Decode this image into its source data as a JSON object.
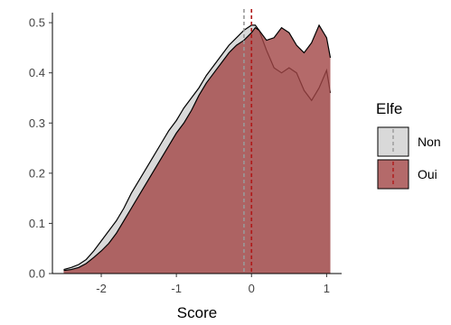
{
  "chart_data": {
    "type": "area",
    "title": "",
    "xlabel": "Score",
    "ylabel": "",
    "xlim": [
      -2.65,
      1.2
    ],
    "ylim": [
      0,
      0.52
    ],
    "x_ticks": [
      -2,
      -1,
      0,
      1
    ],
    "y_ticks": [
      0.0,
      0.1,
      0.2,
      0.3,
      0.4,
      0.5
    ],
    "x_tick_labels": [
      "-2",
      "-1",
      "0",
      "1"
    ],
    "y_tick_labels": [
      "0.0",
      "0.1",
      "0.2",
      "0.3",
      "0.4",
      "0.5"
    ],
    "grid": false,
    "legend": {
      "title": "Elfe",
      "position": "right"
    },
    "series": [
      {
        "name": "Non",
        "fill_color": "#d9d9d9",
        "line_color": "#000000",
        "mean_line_color": "#999999",
        "mean": -0.1,
        "points": [
          [
            -2.5,
            0.008
          ],
          [
            -2.4,
            0.012
          ],
          [
            -2.3,
            0.018
          ],
          [
            -2.2,
            0.028
          ],
          [
            -2.1,
            0.045
          ],
          [
            -2.0,
            0.065
          ],
          [
            -1.9,
            0.085
          ],
          [
            -1.8,
            0.105
          ],
          [
            -1.7,
            0.13
          ],
          [
            -1.6,
            0.16
          ],
          [
            -1.5,
            0.185
          ],
          [
            -1.4,
            0.21
          ],
          [
            -1.3,
            0.235
          ],
          [
            -1.2,
            0.26
          ],
          [
            -1.1,
            0.285
          ],
          [
            -1.0,
            0.305
          ],
          [
            -0.9,
            0.33
          ],
          [
            -0.8,
            0.35
          ],
          [
            -0.7,
            0.37
          ],
          [
            -0.6,
            0.395
          ],
          [
            -0.5,
            0.415
          ],
          [
            -0.4,
            0.435
          ],
          [
            -0.3,
            0.455
          ],
          [
            -0.2,
            0.47
          ],
          [
            -0.1,
            0.485
          ],
          [
            0.0,
            0.495
          ],
          [
            0.05,
            0.495
          ],
          [
            0.1,
            0.485
          ],
          [
            0.2,
            0.445
          ],
          [
            0.3,
            0.41
          ],
          [
            0.4,
            0.4
          ],
          [
            0.5,
            0.41
          ],
          [
            0.6,
            0.4
          ],
          [
            0.7,
            0.365
          ],
          [
            0.8,
            0.345
          ],
          [
            0.9,
            0.37
          ],
          [
            1.0,
            0.405
          ],
          [
            1.05,
            0.36
          ]
        ]
      },
      {
        "name": "Oui",
        "fill_color": "#a14545",
        "line_color": "#000000",
        "mean_line_color": "#b01818",
        "mean": 0.0,
        "points": [
          [
            -2.5,
            0.006
          ],
          [
            -2.4,
            0.008
          ],
          [
            -2.3,
            0.012
          ],
          [
            -2.2,
            0.02
          ],
          [
            -2.1,
            0.032
          ],
          [
            -2.0,
            0.045
          ],
          [
            -1.9,
            0.06
          ],
          [
            -1.8,
            0.08
          ],
          [
            -1.7,
            0.105
          ],
          [
            -1.6,
            0.13
          ],
          [
            -1.5,
            0.155
          ],
          [
            -1.4,
            0.18
          ],
          [
            -1.3,
            0.205
          ],
          [
            -1.2,
            0.23
          ],
          [
            -1.1,
            0.255
          ],
          [
            -1.0,
            0.28
          ],
          [
            -0.9,
            0.3
          ],
          [
            -0.8,
            0.325
          ],
          [
            -0.7,
            0.355
          ],
          [
            -0.6,
            0.38
          ],
          [
            -0.5,
            0.4
          ],
          [
            -0.4,
            0.42
          ],
          [
            -0.3,
            0.44
          ],
          [
            -0.2,
            0.455
          ],
          [
            -0.1,
            0.465
          ],
          [
            0.0,
            0.48
          ],
          [
            0.05,
            0.49
          ],
          [
            0.1,
            0.485
          ],
          [
            0.2,
            0.465
          ],
          [
            0.3,
            0.47
          ],
          [
            0.4,
            0.49
          ],
          [
            0.5,
            0.48
          ],
          [
            0.6,
            0.455
          ],
          [
            0.7,
            0.44
          ],
          [
            0.8,
            0.46
          ],
          [
            0.9,
            0.495
          ],
          [
            1.0,
            0.47
          ],
          [
            1.05,
            0.43
          ]
        ]
      }
    ]
  }
}
